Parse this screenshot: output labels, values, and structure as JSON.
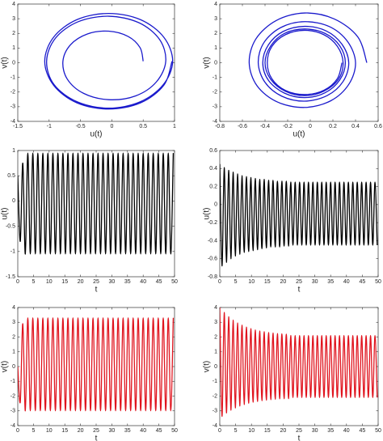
{
  "chart_data": [
    {
      "type": "line",
      "xlabel": "u(t)",
      "ylabel": "v(t)",
      "color": "#1a1acc",
      "xlim": [
        -1.5,
        1
      ],
      "xticks": [
        -1.5,
        -1,
        -0.5,
        0,
        0.5,
        1
      ],
      "ylim": [
        -4,
        4
      ],
      "yticks": [
        -4,
        -3,
        -2,
        -1,
        0,
        1,
        2,
        3,
        4
      ],
      "x": [
        0.5,
        0.45,
        0.26,
        -0.05,
        -0.39,
        -0.66,
        -0.78,
        -0.71,
        -0.45,
        -0.05,
        0.38,
        0.71,
        0.86,
        0.76,
        0.43,
        -0.05,
        -0.54,
        -0.9,
        -1.04,
        -0.92,
        -0.55,
        -0.05,
        0.45,
        0.82,
        0.97,
        0.83,
        0.46,
        -0.05,
        -0.56,
        -0.93,
        -1.07,
        -0.93,
        -0.56,
        -0.05,
        0.46,
        0.83,
        0.96
      ],
      "values": [
        0.1,
        1.03,
        1.79,
        2.15,
        1.96,
        1.22,
        0.1,
        -1.12,
        -2.09,
        -2.52,
        -2.26,
        -1.31,
        0.1,
        1.59,
        2.73,
        3.17,
        2.79,
        1.67,
        0.1,
        -1.5,
        -2.67,
        -3.1,
        -2.67,
        -1.5,
        0.1,
        1.73,
        2.93,
        3.36,
        2.93,
        1.73,
        0.1,
        -1.53,
        -2.73,
        -3.16,
        -2.73,
        -1.53,
        0.1
      ]
    },
    {
      "type": "line",
      "xlabel": "u(t)",
      "ylabel": "v(t)",
      "color": "#1a1acc",
      "xlim": [
        -0.8,
        0.6
      ],
      "xticks": [
        -0.8,
        -0.6,
        -0.4,
        -0.2,
        0,
        0.2,
        0.4,
        0.6
      ],
      "ylim": [
        -4,
        4
      ],
      "yticks": [
        -4,
        -3,
        -2,
        -1,
        0,
        1,
        2,
        3,
        4
      ],
      "x": [
        0.5,
        0.42,
        0.21,
        -0.05,
        -0.3,
        -0.48,
        -0.54,
        -0.47,
        -0.29,
        -0.05,
        0.18,
        0.34,
        0.4,
        0.33,
        0.17,
        -0.05,
        -0.26,
        -0.41,
        -0.46,
        -0.4,
        -0.25,
        -0.05,
        0.15,
        0.29,
        0.34,
        0.28,
        0.14,
        -0.05,
        -0.24,
        -0.37,
        -0.42,
        -0.37,
        -0.23,
        -0.05,
        0.13,
        0.26,
        0.31,
        0.26,
        0.13,
        -0.05,
        -0.23,
        -0.35,
        -0.4,
        -0.35,
        -0.22,
        -0.05,
        0.12,
        0.25,
        0.29,
        0.24,
        0.12,
        -0.05,
        -0.22,
        -0.34,
        -0.38,
        -0.34,
        -0.22,
        -0.05,
        0.12,
        0.24,
        0.28
      ],
      "values": [
        0,
        1.76,
        2.99,
        3.39,
        2.88,
        1.63,
        0,
        -1.58,
        -2.68,
        -3.05,
        -2.6,
        -1.48,
        0,
        1.44,
        2.46,
        2.8,
        2.4,
        1.37,
        0,
        -1.34,
        -2.29,
        -2.62,
        -2.24,
        -1.28,
        0,
        1.26,
        2.17,
        2.48,
        2.13,
        1.22,
        0,
        -1.2,
        -2.07,
        -2.38,
        -2.05,
        -1.18,
        0,
        1.16,
        2,
        2.3,
        1.99,
        1.14,
        0,
        -1.13,
        -1.95,
        -2.25,
        -1.94,
        -1.12,
        0,
        1.11,
        1.91,
        2.21,
        1.91,
        1.1,
        0,
        -1.09,
        -1.89,
        -2.17,
        -1.88,
        -1.08,
        0
      ]
    },
    {
      "type": "line",
      "xlabel": "t",
      "ylabel": "u(t)",
      "color": "#000000",
      "xlim": [
        0,
        50
      ],
      "xticks": [
        0,
        5,
        10,
        15,
        20,
        25,
        30,
        35,
        40,
        45,
        50
      ],
      "ylim": [
        -1.5,
        1
      ],
      "yticks": [
        -1.5,
        -1,
        -0.5,
        0,
        0.5,
        1
      ],
      "x": [
        0,
        0.8,
        1.6,
        2.4,
        3.2,
        4,
        4.8,
        5.6,
        6.4,
        7.2,
        8,
        8.8,
        9.6,
        10.4,
        11.2,
        12,
        12.8,
        13.6,
        14.4,
        15.2,
        16,
        16.8,
        17.6,
        18.4,
        19.2,
        20,
        20.8,
        21.6,
        22.4,
        23.2,
        24,
        24.8,
        25.6,
        26.4,
        27.2,
        28,
        28.8,
        29.6,
        30.4,
        31.2,
        32,
        32.8,
        33.6,
        34.4,
        35.2,
        36,
        36.8,
        37.6,
        38.4,
        39.2,
        40,
        40.8,
        41.6,
        42.4,
        43.2,
        44,
        44.8,
        45.6,
        46.4,
        47.2,
        48,
        48.8,
        49.6
      ],
      "values": [
        0.5,
        -0.8,
        0.75,
        -1.05,
        0.95,
        -1.05,
        0.95,
        -1.05,
        0.95,
        -1.05,
        0.95,
        -1.05,
        0.95,
        -1.05,
        0.95,
        -1.05,
        0.95,
        -1.05,
        0.95,
        -1.05,
        0.95,
        -1.05,
        0.95,
        -1.05,
        0.95,
        -1.05,
        0.95,
        -1.05,
        0.95,
        -1.05,
        0.95,
        -1.05,
        0.95,
        -1.05,
        0.95,
        -1.05,
        0.95,
        -1.05,
        0.95,
        -1.05,
        0.95,
        -1.05,
        0.95,
        -1.05,
        0.95,
        -1.05,
        0.95,
        -1.05,
        0.95,
        -1.05,
        0.95,
        -1.05,
        0.95,
        -1.05,
        0.95,
        -1.05,
        0.95,
        -1.05,
        0.95,
        -1.05,
        0.95,
        -1.05,
        0.95
      ]
    },
    {
      "type": "line",
      "xlabel": "t",
      "ylabel": "u(t)",
      "color": "#000000",
      "xlim": [
        0,
        50
      ],
      "xticks": [
        0,
        5,
        10,
        15,
        20,
        25,
        30,
        35,
        40,
        45,
        50
      ],
      "ylim": [
        -0.8,
        0.6
      ],
      "yticks": [
        -0.8,
        -0.6,
        -0.4,
        -0.2,
        0,
        0.2,
        0.4,
        0.6
      ],
      "x": [
        0,
        0.7,
        1.4,
        2.1,
        2.8,
        3.5,
        4.2,
        4.9,
        5.6,
        6.3,
        7,
        7.7,
        8.4,
        9.1,
        9.8,
        10.5,
        11.2,
        11.9,
        12.6,
        13.3,
        14,
        14.7,
        15.4,
        16.1,
        16.8,
        17.5,
        18.2,
        18.9,
        19.6,
        20.3,
        21,
        21.7,
        22.4,
        23.1,
        23.8,
        24.5,
        25.2,
        25.9,
        26.6,
        27.3,
        28,
        28.7,
        29.4,
        30.1,
        30.8,
        31.5,
        32.2,
        32.9,
        33.6,
        34.3,
        35,
        35.7,
        36.4,
        37.1,
        37.8,
        38.5,
        39.2,
        39.9,
        40.6,
        41.3,
        42,
        42.7,
        43.4,
        44.1,
        44.8,
        45.5,
        46.2,
        46.9,
        47.6,
        48.3,
        49,
        49.7
      ],
      "values": [
        0.45,
        -0.68,
        0.41,
        -0.64,
        0.38,
        -0.6,
        0.36,
        -0.57,
        0.34,
        -0.55,
        0.32,
        -0.53,
        0.31,
        -0.52,
        0.3,
        -0.51,
        0.29,
        -0.5,
        0.28,
        -0.49,
        0.28,
        -0.48,
        0.27,
        -0.47,
        0.27,
        -0.47,
        0.26,
        -0.47,
        0.26,
        -0.46,
        0.26,
        -0.46,
        0.25,
        -0.45,
        0.25,
        -0.45,
        0.25,
        -0.45,
        0.25,
        -0.45,
        0.25,
        -0.45,
        0.25,
        -0.45,
        0.25,
        -0.45,
        0.25,
        -0.45,
        0.25,
        -0.45,
        0.25,
        -0.45,
        0.25,
        -0.45,
        0.25,
        -0.45,
        0.25,
        -0.45,
        0.25,
        -0.45,
        0.25,
        -0.45,
        0.25,
        -0.45,
        0.25,
        -0.45,
        0.25,
        -0.45,
        0.25,
        -0.45,
        0.25,
        -0.45
      ]
    },
    {
      "type": "line",
      "xlabel": "t",
      "ylabel": "v(t)",
      "color": "#e0141e",
      "xlim": [
        0,
        50
      ],
      "xticks": [
        0,
        5,
        10,
        15,
        20,
        25,
        30,
        35,
        40,
        45,
        50
      ],
      "ylim": [
        -4,
        4
      ],
      "yticks": [
        -4,
        -3,
        -2,
        -1,
        0,
        1,
        2,
        3,
        4
      ],
      "x": [
        0,
        0.8,
        1.6,
        2.4,
        3.2,
        4,
        4.8,
        5.6,
        6.4,
        7.2,
        8,
        8.8,
        9.6,
        10.4,
        11.2,
        12,
        12.8,
        13.6,
        14.4,
        15.2,
        16,
        16.8,
        17.6,
        18.4,
        19.2,
        20,
        20.8,
        21.6,
        22.4,
        23.2,
        24,
        24.8,
        25.6,
        26.4,
        27.2,
        28,
        28.8,
        29.6,
        30.4,
        31.2,
        32,
        32.8,
        33.6,
        34.4,
        35.2,
        36,
        36.8,
        37.6,
        38.4,
        39.2,
        40,
        40.8,
        41.6,
        42.4,
        43.2,
        44,
        44.8,
        45.6,
        46.4,
        47.2,
        48,
        48.8,
        49.6
      ],
      "values": [
        0,
        -2.4,
        2.9,
        -3,
        3.3,
        -3,
        3.3,
        -3,
        3.3,
        -3,
        3.3,
        -3,
        3.3,
        -3,
        3.3,
        -3,
        3.3,
        -3,
        3.3,
        -3,
        3.3,
        -3,
        3.3,
        -3,
        3.3,
        -3,
        3.3,
        -3,
        3.3,
        -3,
        3.3,
        -3,
        3.3,
        -3,
        3.3,
        -3,
        3.3,
        -3,
        3.3,
        -3,
        3.3,
        -3,
        3.3,
        -3,
        3.3,
        -3,
        3.3,
        -3,
        3.3,
        -3,
        3.3,
        -3,
        3.3,
        -3,
        3.3,
        -3,
        3.3,
        -3,
        3.3,
        -3,
        3.3,
        -3,
        3.3
      ]
    },
    {
      "type": "line",
      "xlabel": "t",
      "ylabel": "v(t)",
      "color": "#e0141e",
      "xlim": [
        0,
        50
      ],
      "xticks": [
        0,
        5,
        10,
        15,
        20,
        25,
        30,
        35,
        40,
        45,
        50
      ],
      "ylim": [
        -4,
        4
      ],
      "yticks": [
        -4,
        -3,
        -2,
        -1,
        0,
        1,
        2,
        3,
        4
      ],
      "x": [
        0,
        0.7,
        1.4,
        2.1,
        2.8,
        3.5,
        4.2,
        4.9,
        5.6,
        6.3,
        7,
        7.7,
        8.4,
        9.1,
        9.8,
        10.5,
        11.2,
        11.9,
        12.6,
        13.3,
        14,
        14.7,
        15.4,
        16.1,
        16.8,
        17.5,
        18.2,
        18.9,
        19.6,
        20.3,
        21,
        21.7,
        22.4,
        23.1,
        23.8,
        24.5,
        25.2,
        25.9,
        26.6,
        27.3,
        28,
        28.7,
        29.4,
        30.1,
        30.8,
        31.5,
        32.2,
        32.9,
        33.6,
        34.3,
        35,
        35.7,
        36.4,
        37.1,
        37.8,
        38.5,
        39.2,
        39.9,
        40.6,
        41.3,
        42,
        42.7,
        43.4,
        44.1,
        44.8,
        45.5,
        46.2,
        46.9,
        47.6,
        48.3,
        49,
        49.7
      ],
      "values": [
        4,
        -3.37,
        3.66,
        -3.14,
        3.37,
        -2.95,
        3.14,
        -2.8,
        2.95,
        -2.67,
        2.8,
        -2.57,
        2.67,
        -2.48,
        2.57,
        -2.41,
        2.48,
        -2.36,
        2.41,
        -2.31,
        2.36,
        -2.27,
        2.31,
        -2.24,
        2.27,
        -2.21,
        2.24,
        -2.19,
        2.22,
        -2.18,
        2.2,
        -2.17,
        2.1,
        -2.1,
        2.1,
        -2.1,
        2.1,
        -2.1,
        2.1,
        -2.1,
        2.1,
        -2.1,
        2.1,
        -2.1,
        2.1,
        -2.1,
        2.1,
        -2.1,
        2.1,
        -2.1,
        2.1,
        -2.1,
        2.1,
        -2.1,
        2.1,
        -2.1,
        2.1,
        -2.1,
        2.1,
        -2.1,
        2.1,
        -2.1,
        2.1,
        -2.1,
        2.1,
        -2.1,
        2.1,
        -2.1,
        2.1,
        -2.1,
        2.1,
        -2.1
      ]
    }
  ]
}
